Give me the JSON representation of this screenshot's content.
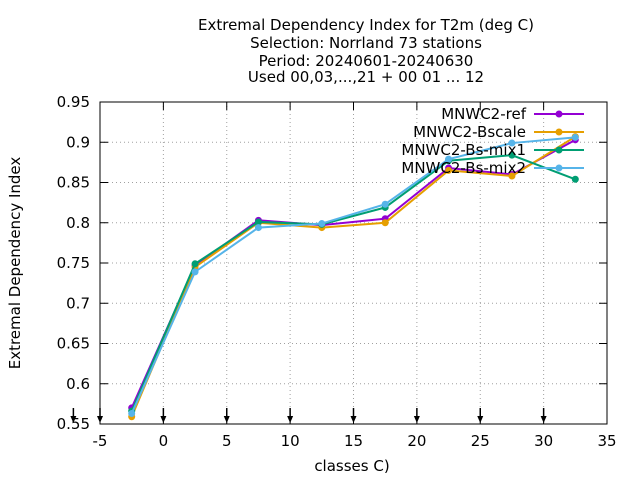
{
  "chart_data": {
    "type": "line",
    "title_lines": [
      "Extremal Dependency Index  for T2m (deg C)",
      "Selection: Norrland     73 stations",
      "Period: 20240601-20240630",
      "Used 00,03,...,21 + 00 01 ... 12"
    ],
    "xlabel": "classes C)",
    "ylabel": "Extremal Dependency Index",
    "xlim": [
      -5,
      35
    ],
    "ylim": [
      0.55,
      0.95
    ],
    "xticks": [
      -5,
      0,
      5,
      10,
      15,
      20,
      25,
      30,
      35
    ],
    "yticks": [
      0.55,
      0.6,
      0.65,
      0.7,
      0.75,
      0.8,
      0.85,
      0.9,
      0.95
    ],
    "xtick_labels": [
      "-5",
      "0",
      "5",
      "10",
      "15",
      "20",
      "25",
      "30",
      "35"
    ],
    "ytick_labels": [
      "0.55",
      "0.6",
      "0.65",
      "0.7",
      "0.75",
      "0.8",
      "0.85",
      "0.9",
      "0.95"
    ],
    "grid": true,
    "legend_position": "top-right",
    "class_markers_x": [
      -5,
      0,
      5,
      10,
      15,
      20,
      25,
      30
    ],
    "series": [
      {
        "name": "MNWC2-ref",
        "color": "#9400d3",
        "x": [
          -2.5,
          2.5,
          7.5,
          12.5,
          17.5,
          22.5,
          27.5,
          32.5
        ],
        "values": [
          0.57,
          0.747,
          0.803,
          0.797,
          0.805,
          0.868,
          0.86,
          0.903
        ]
      },
      {
        "name": "MNWC2-Bscale",
        "color": "#e69f00",
        "x": [
          -2.5,
          2.5,
          7.5,
          12.5,
          17.5,
          22.5,
          27.5,
          32.5
        ],
        "values": [
          0.559,
          0.745,
          0.8,
          0.794,
          0.8,
          0.865,
          0.858,
          0.907
        ]
      },
      {
        "name": "MNWC2-Bs-mix1",
        "color": "#009e73",
        "x": [
          -2.5,
          2.5,
          7.5,
          12.5,
          17.5,
          22.5,
          27.5,
          32.5
        ],
        "values": [
          0.566,
          0.749,
          0.801,
          0.798,
          0.819,
          0.877,
          0.884,
          0.854
        ]
      },
      {
        "name": "MNWC2-Bs-mix2",
        "color": "#56b4e9",
        "x": [
          -2.5,
          2.5,
          7.5,
          12.5,
          17.5,
          22.5,
          27.5,
          32.5
        ],
        "values": [
          0.563,
          0.739,
          0.794,
          0.799,
          0.823,
          0.879,
          0.899,
          0.906
        ]
      }
    ]
  }
}
